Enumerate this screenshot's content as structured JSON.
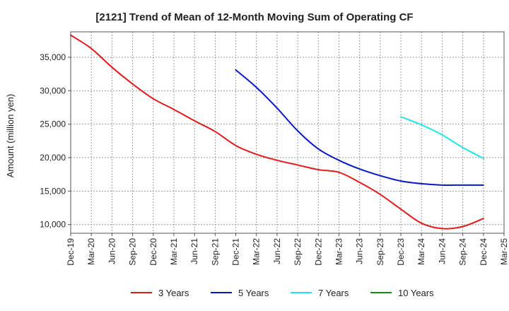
{
  "chart_data": {
    "type": "line",
    "title": "[2121]  Trend of Mean of 12-Month Moving Sum of Operating CF",
    "xlabel": "",
    "ylabel": "Amount (million yen)",
    "ylim": [
      8700,
      38800
    ],
    "grid": true,
    "legend_position": "bottom",
    "y_ticks": [
      10000,
      15000,
      20000,
      25000,
      30000,
      35000
    ],
    "y_tick_labels": [
      "10,000",
      "15,000",
      "20,000",
      "25,000",
      "30,000",
      "35,000"
    ],
    "categories": [
      "Dec-19",
      "Mar-20",
      "Jun-20",
      "Sep-20",
      "Dec-20",
      "Mar-21",
      "Jun-21",
      "Sep-21",
      "Dec-21",
      "Mar-22",
      "Jun-22",
      "Sep-22",
      "Dec-22",
      "Mar-23",
      "Jun-23",
      "Sep-23",
      "Dec-23",
      "Mar-24",
      "Jun-24",
      "Sep-24",
      "Dec-24",
      "Mar-25"
    ],
    "series": [
      {
        "name": "3 Years",
        "color": "#e31a1c",
        "values": [
          38300,
          36300,
          33500,
          31000,
          28800,
          27200,
          25500,
          23900,
          21800,
          20500,
          19600,
          18900,
          18200,
          17800,
          16300,
          14500,
          12300,
          10200,
          9400,
          9700,
          10900,
          null
        ]
      },
      {
        "name": "5 Years",
        "color": "#0a18c8",
        "values": [
          null,
          null,
          null,
          null,
          null,
          null,
          null,
          null,
          33100,
          30500,
          27400,
          24000,
          21300,
          19600,
          18300,
          17300,
          16500,
          16100,
          15900,
          15900,
          15900,
          null
        ]
      },
      {
        "name": "7 Years",
        "color": "#1de6e6",
        "values": [
          null,
          null,
          null,
          null,
          null,
          null,
          null,
          null,
          null,
          null,
          null,
          null,
          null,
          null,
          null,
          null,
          26100,
          24900,
          23400,
          21500,
          19900,
          null
        ]
      },
      {
        "name": "10 Years",
        "color": "#1b8a1b",
        "values": [
          null,
          null,
          null,
          null,
          null,
          null,
          null,
          null,
          null,
          null,
          null,
          null,
          null,
          null,
          null,
          null,
          null,
          null,
          null,
          null,
          null,
          null
        ]
      }
    ]
  }
}
